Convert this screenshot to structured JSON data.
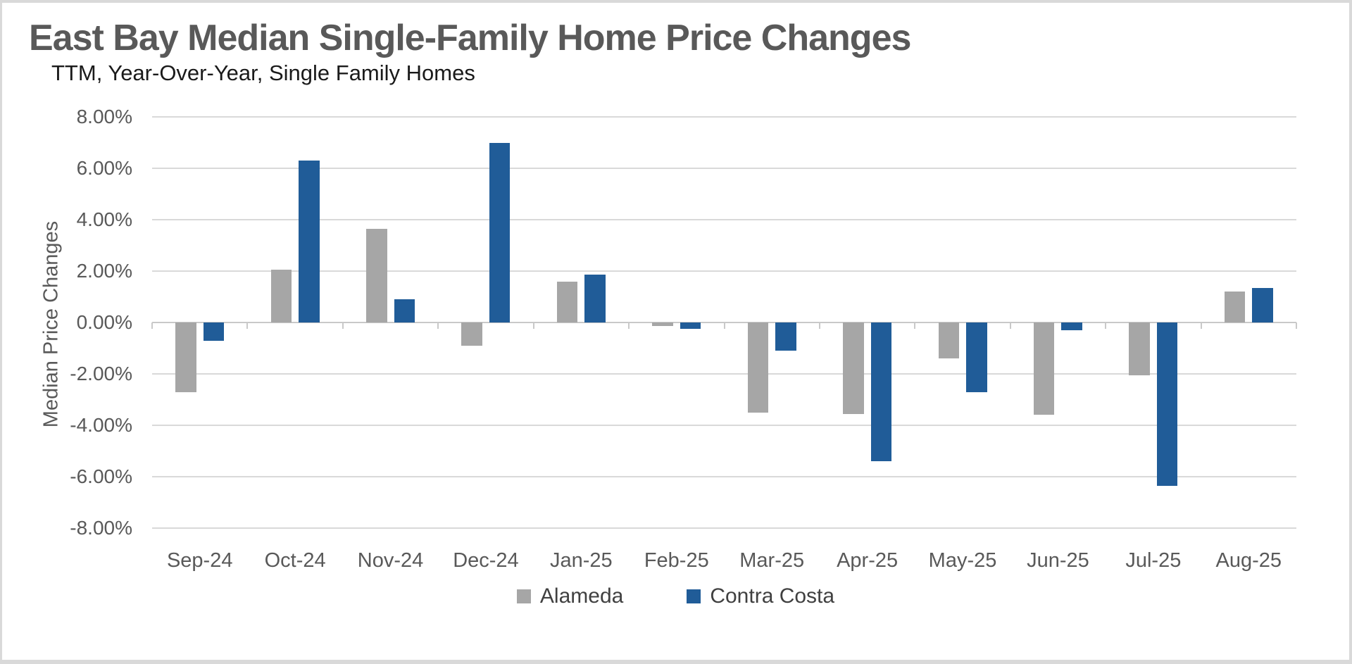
{
  "window": {
    "background": "#FFFFFF",
    "border_color": "#D9D9D9"
  },
  "chart_data": {
    "type": "bar",
    "title": "East Bay Median Single-Family Home Price Changes",
    "subtitle": "TTM, Year-Over-Year, Single Family Homes",
    "ylabel": "Median Price Changes",
    "xlabel": "",
    "categories": [
      "Sep-24",
      "Oct-24",
      "Nov-24",
      "Dec-24",
      "Jan-25",
      "Feb-25",
      "Mar-25",
      "Apr-25",
      "May-25",
      "Jun-25",
      "Jul-25",
      "Aug-25"
    ],
    "series": [
      {
        "name": "Alameda",
        "color": "#A6A6A6",
        "values": [
          -2.7,
          2.05,
          3.65,
          -0.9,
          1.6,
          -0.15,
          -3.5,
          -3.55,
          -1.4,
          -3.6,
          -2.05,
          1.2
        ]
      },
      {
        "name": "Contra Costa",
        "color": "#205C98",
        "values": [
          -0.7,
          6.3,
          0.9,
          7.0,
          1.85,
          -0.25,
          -1.1,
          -5.4,
          -2.7,
          -0.3,
          -6.35,
          1.35
        ]
      }
    ],
    "value_unit": "%",
    "ylim": [
      -8,
      8
    ],
    "ytick_step": 2,
    "ytick_labels": [
      "8.00%",
      "6.00%",
      "4.00%",
      "2.00%",
      "0.00%",
      "-2.00%",
      "-4.00%",
      "-6.00%",
      "-8.00%"
    ],
    "grid": true,
    "gridline_color": "#D9D9D9",
    "axis_line_color": "#C9C9C9",
    "title_color": "#595959",
    "subtitle_color": "#1A1A1A",
    "axis_text_color": "#595959",
    "legend_text_color": "#404040",
    "legend_position": "bottom"
  }
}
